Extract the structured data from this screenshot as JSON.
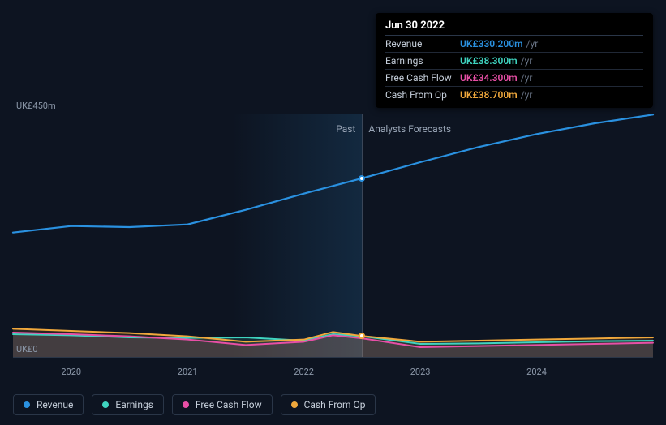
{
  "chart": {
    "background_color": "#0d1421",
    "grid_color": "#2a3648",
    "axis_color": "#8b97a8",
    "ymin": 0,
    "ymax": 450,
    "ylabel_top": "UK£450m",
    "ylabel_bottom": "UK£0",
    "xstart_year": 2019.5,
    "xend_year": 2025.0,
    "xlabels": [
      {
        "year": 2020,
        "label": "2020"
      },
      {
        "year": 2021,
        "label": "2021"
      },
      {
        "year": 2022,
        "label": "2022"
      },
      {
        "year": 2023,
        "label": "2023"
      },
      {
        "year": 2024,
        "label": "2024"
      }
    ],
    "divider_year": 2022.5,
    "past_label": "Past",
    "forecast_label": "Analysts Forecasts",
    "series": [
      {
        "id": "revenue",
        "label": "Revenue",
        "color": "#2a91e0",
        "width": 2.2,
        "data": [
          {
            "x": 2019.5,
            "y": 230
          },
          {
            "x": 2020.0,
            "y": 242
          },
          {
            "x": 2020.5,
            "y": 240
          },
          {
            "x": 2021.0,
            "y": 245
          },
          {
            "x": 2021.5,
            "y": 272
          },
          {
            "x": 2022.0,
            "y": 302
          },
          {
            "x": 2022.5,
            "y": 330.2
          },
          {
            "x": 2023.0,
            "y": 360
          },
          {
            "x": 2023.5,
            "y": 388
          },
          {
            "x": 2024.0,
            "y": 412
          },
          {
            "x": 2024.5,
            "y": 432
          },
          {
            "x": 2025.0,
            "y": 448
          }
        ]
      },
      {
        "id": "earnings",
        "label": "Earnings",
        "color": "#3fd4c0",
        "width": 2,
        "data": [
          {
            "x": 2019.5,
            "y": 42
          },
          {
            "x": 2020.0,
            "y": 40
          },
          {
            "x": 2020.5,
            "y": 36
          },
          {
            "x": 2021.0,
            "y": 35
          },
          {
            "x": 2021.5,
            "y": 36
          },
          {
            "x": 2022.0,
            "y": 30
          },
          {
            "x": 2022.25,
            "y": 42
          },
          {
            "x": 2022.5,
            "y": 38.3
          },
          {
            "x": 2023.0,
            "y": 24
          },
          {
            "x": 2023.5,
            "y": 25
          },
          {
            "x": 2024.0,
            "y": 27
          },
          {
            "x": 2024.5,
            "y": 29
          },
          {
            "x": 2025.0,
            "y": 30
          }
        ]
      },
      {
        "id": "fcf",
        "label": "Free Cash Flow",
        "color": "#e84fa6",
        "width": 2,
        "data": [
          {
            "x": 2019.5,
            "y": 45
          },
          {
            "x": 2020.0,
            "y": 42
          },
          {
            "x": 2020.5,
            "y": 38
          },
          {
            "x": 2021.0,
            "y": 32
          },
          {
            "x": 2021.5,
            "y": 22
          },
          {
            "x": 2022.0,
            "y": 28
          },
          {
            "x": 2022.25,
            "y": 40
          },
          {
            "x": 2022.5,
            "y": 34.3
          },
          {
            "x": 2023.0,
            "y": 18
          },
          {
            "x": 2023.5,
            "y": 20
          },
          {
            "x": 2024.0,
            "y": 22
          },
          {
            "x": 2024.5,
            "y": 24
          },
          {
            "x": 2025.0,
            "y": 26
          }
        ]
      },
      {
        "id": "cfo",
        "label": "Cash From Op",
        "color": "#f0a83c",
        "width": 2,
        "data": [
          {
            "x": 2019.5,
            "y": 52
          },
          {
            "x": 2020.0,
            "y": 48
          },
          {
            "x": 2020.5,
            "y": 44
          },
          {
            "x": 2021.0,
            "y": 38
          },
          {
            "x": 2021.5,
            "y": 28
          },
          {
            "x": 2022.0,
            "y": 32
          },
          {
            "x": 2022.25,
            "y": 46
          },
          {
            "x": 2022.5,
            "y": 38.7
          },
          {
            "x": 2023.0,
            "y": 28
          },
          {
            "x": 2023.5,
            "y": 30
          },
          {
            "x": 2024.0,
            "y": 32
          },
          {
            "x": 2024.5,
            "y": 34
          },
          {
            "x": 2025.0,
            "y": 36
          }
        ]
      }
    ],
    "area_fill_opacity": 0.12,
    "markers": [
      {
        "series": "revenue",
        "x": 2022.5,
        "border": "#2a91e0"
      },
      {
        "series": "cfo",
        "x": 2022.5,
        "border": "#f0a83c"
      }
    ]
  },
  "tooltip": {
    "date": "Jun 30 2022",
    "rows": [
      {
        "id": "revenue",
        "label": "Revenue",
        "value": "UK£330.200m",
        "color": "#2a91e0",
        "suffix": "/yr"
      },
      {
        "id": "earnings",
        "label": "Earnings",
        "value": "UK£38.300m",
        "color": "#3fd4c0",
        "suffix": "/yr"
      },
      {
        "id": "fcf",
        "label": "Free Cash Flow",
        "value": "UK£34.300m",
        "color": "#e84fa6",
        "suffix": "/yr"
      },
      {
        "id": "cfo",
        "label": "Cash From Op",
        "value": "UK£38.700m",
        "color": "#f0a83c",
        "suffix": "/yr"
      }
    ]
  },
  "legend": [
    {
      "id": "revenue",
      "label": "Revenue",
      "color": "#2a91e0"
    },
    {
      "id": "earnings",
      "label": "Earnings",
      "color": "#3fd4c0"
    },
    {
      "id": "fcf",
      "label": "Free Cash Flow",
      "color": "#e84fa6"
    },
    {
      "id": "cfo",
      "label": "Cash From Op",
      "color": "#f0a83c"
    }
  ]
}
